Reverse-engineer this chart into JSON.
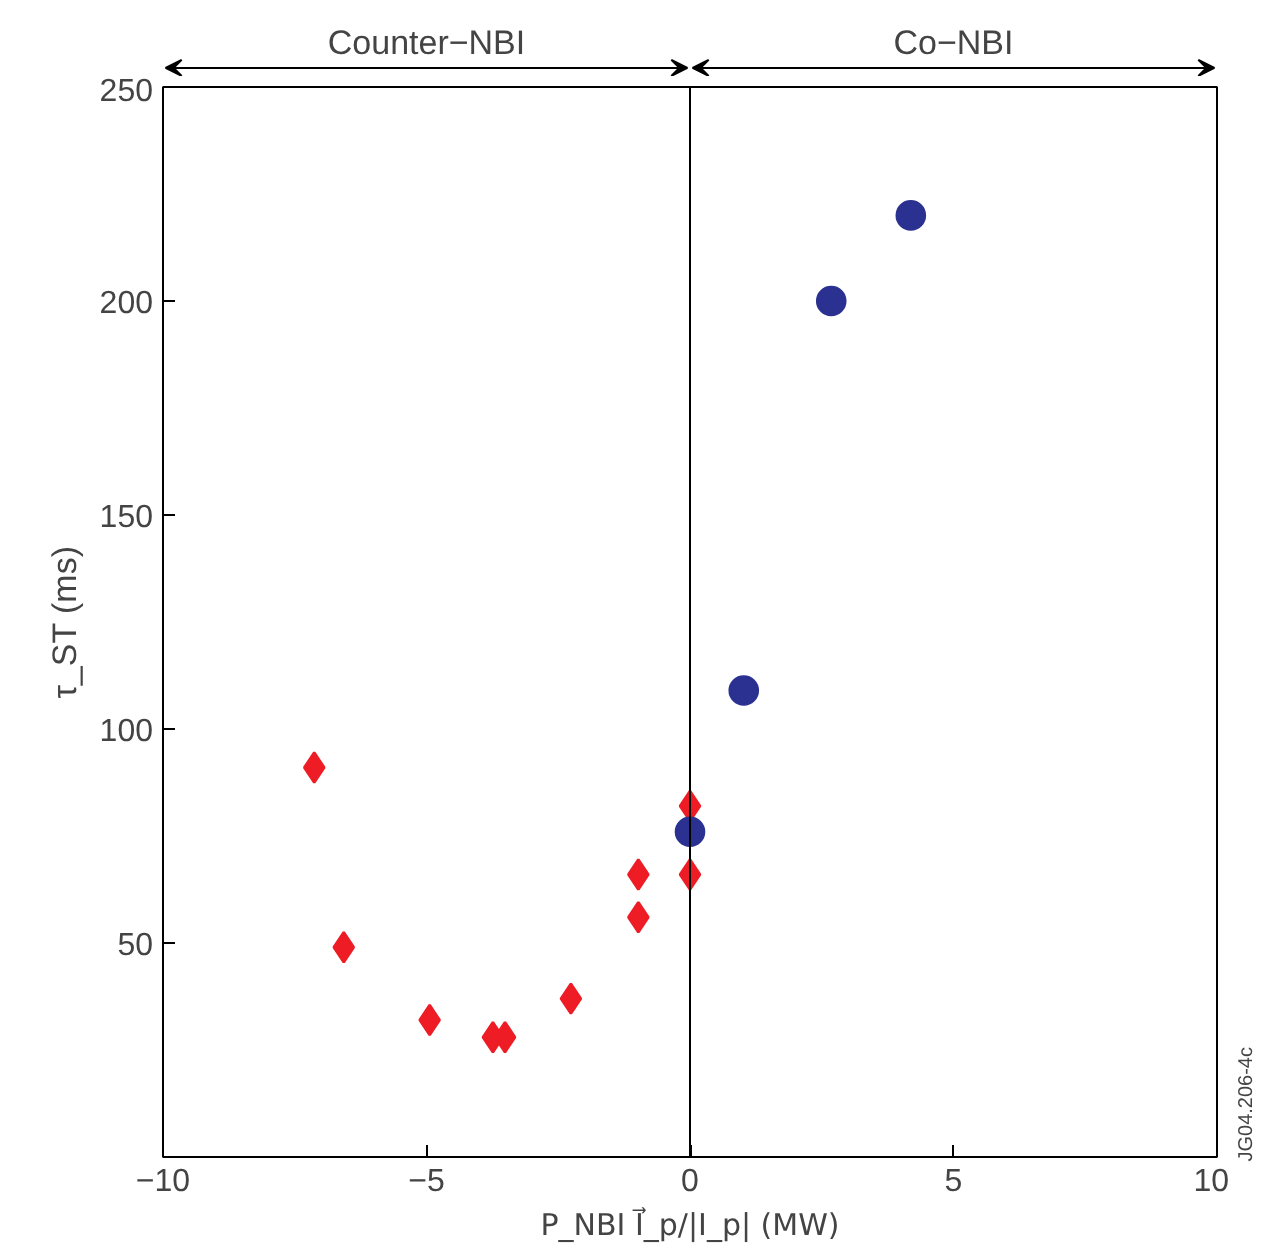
{
  "chart_data": {
    "type": "scatter",
    "xlabel": "P_NBI I⃗_p/|I_p| (MW)",
    "ylabel": "τ_ST (ms)",
    "xlim": [
      -10,
      10
    ],
    "ylim": [
      0,
      250
    ],
    "xticks": [
      {
        "value": -10,
        "label": "−10"
      },
      {
        "value": -5,
        "label": "−5"
      },
      0,
      5,
      10
    ],
    "yticks": [
      50,
      100,
      150,
      200,
      250
    ],
    "grid": false,
    "series": [
      {
        "color": "#ee1c25",
        "marker": "diamond",
        "x": [
          -7.13,
          -6.57,
          -4.94,
          -3.74,
          -3.51,
          -2.26,
          -0.98,
          -0.98
        ],
        "values": [
          91,
          49,
          32,
          28,
          28,
          37,
          56,
          66
        ]
      },
      {
        "color": "#ee1c25",
        "marker": "diamond",
        "x": [
          0,
          0
        ],
        "values": [
          82,
          66
        ]
      },
      {
        "color": "#2b3190",
        "marker": "circle",
        "x": [
          0
        ],
        "values": [
          76
        ]
      },
      {
        "color": "#2b3190",
        "marker": "circle",
        "x": [
          1.02,
          2.68,
          4.19
        ],
        "values": [
          109,
          200,
          220
        ]
      }
    ],
    "ref_lines": [
      {
        "axis": "x",
        "value": 0,
        "color": "#000000"
      }
    ],
    "annotations": [
      "Counter−NBI",
      "Co−NBI",
      "JG04.206-4c"
    ]
  }
}
